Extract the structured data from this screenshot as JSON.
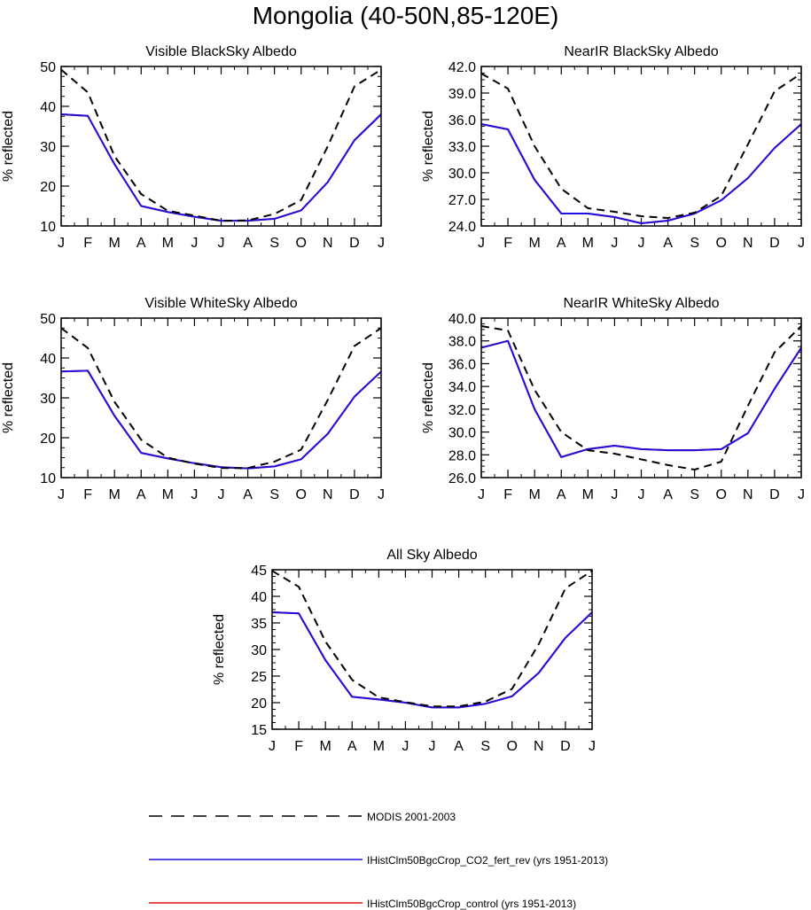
{
  "title": "Mongolia (40-50N,85-120E)",
  "colors": {
    "modis": "#000000",
    "co2_fert_rev": "#1e10e0",
    "control": "#e01010"
  },
  "legend": [
    {
      "label": "MODIS 2001-2003",
      "style": "dashed",
      "color": "#000000"
    },
    {
      "label": "IHistClm50BgcCrop_CO2_fert_rev (yrs 1951-2013)",
      "style": "solid",
      "color": "#1e10e0"
    },
    {
      "label": "IHistClm50BgcCrop_control (yrs 1951-2013)",
      "style": "solid",
      "color": "#e01010"
    }
  ],
  "chart_data": [
    {
      "type": "line",
      "title": "Visible BlackSky Albedo",
      "ylabel": "% reflected",
      "x": [
        "J",
        "F",
        "M",
        "A",
        "M",
        "J",
        "J",
        "A",
        "S",
        "O",
        "N",
        "D",
        "J"
      ],
      "ylim": [
        10,
        50
      ],
      "yticks": [
        "10",
        "20",
        "30",
        "40",
        "50"
      ],
      "series": [
        {
          "name": "MODIS 2001-2003",
          "style": "dashed",
          "color": "#000000",
          "values": [
            49.2,
            43.5,
            27.5,
            18.0,
            13.8,
            12.6,
            11.3,
            11.4,
            13.0,
            16.5,
            30.0,
            45.0,
            49.2
          ]
        },
        {
          "name": "IHistClm50BgcCrop_CO2_fert_rev (yrs 1951-2013)",
          "style": "solid",
          "color": "#1e10e0",
          "values": [
            38.0,
            37.6,
            25.5,
            15.0,
            13.5,
            12.3,
            11.3,
            11.3,
            11.8,
            13.9,
            21.0,
            31.5,
            38.0
          ]
        },
        {
          "name": "IHistClm50BgcCrop_control (yrs 1951-2013)",
          "style": "solid",
          "color": "#e01010",
          "values": [
            38.0,
            37.6,
            25.5,
            15.0,
            13.5,
            12.3,
            11.3,
            11.3,
            11.8,
            13.9,
            21.0,
            31.5,
            38.0
          ]
        }
      ]
    },
    {
      "type": "line",
      "title": "NearIR BlackSky Albedo",
      "ylabel": "% reflected",
      "x": [
        "J",
        "F",
        "M",
        "A",
        "M",
        "J",
        "J",
        "A",
        "S",
        "O",
        "N",
        "D",
        "J"
      ],
      "ylim": [
        24,
        42
      ],
      "yticks": [
        "24.0",
        "27.0",
        "30.0",
        "33.0",
        "36.0",
        "39.0",
        "42.0"
      ],
      "series": [
        {
          "name": "MODIS 2001-2003",
          "style": "dashed",
          "color": "#000000",
          "values": [
            41.2,
            39.5,
            33.0,
            28.2,
            26.0,
            25.6,
            25.1,
            24.9,
            25.5,
            27.4,
            33.2,
            39.2,
            41.2
          ]
        },
        {
          "name": "IHistClm50BgcCrop_CO2_fert_rev (yrs 1951-2013)",
          "style": "solid",
          "color": "#1e10e0",
          "values": [
            35.5,
            34.9,
            29.2,
            25.4,
            25.4,
            25.0,
            24.3,
            24.6,
            25.4,
            26.9,
            29.4,
            32.8,
            35.5
          ]
        },
        {
          "name": "IHistClm50BgcCrop_control (yrs 1951-2013)",
          "style": "solid",
          "color": "#e01010",
          "values": [
            35.5,
            34.9,
            29.2,
            25.4,
            25.4,
            25.0,
            24.3,
            24.6,
            25.4,
            26.9,
            29.4,
            32.8,
            35.5
          ]
        }
      ]
    },
    {
      "type": "line",
      "title": "Visible WhiteSky Albedo",
      "ylabel": "% reflected",
      "x": [
        "J",
        "F",
        "M",
        "A",
        "M",
        "J",
        "J",
        "A",
        "S",
        "O",
        "N",
        "D",
        "J"
      ],
      "ylim": [
        10,
        50
      ],
      "yticks": [
        "10",
        "20",
        "30",
        "40",
        "50"
      ],
      "series": [
        {
          "name": "MODIS 2001-2003",
          "style": "dashed",
          "color": "#000000",
          "values": [
            47.5,
            42.5,
            29.0,
            19.5,
            15.0,
            13.5,
            12.4,
            12.4,
            14.0,
            17.0,
            29.5,
            43.0,
            47.5
          ]
        },
        {
          "name": "IHistClm50BgcCrop_CO2_fert_rev (yrs 1951-2013)",
          "style": "solid",
          "color": "#1e10e0",
          "values": [
            36.6,
            36.8,
            25.5,
            16.2,
            14.8,
            13.6,
            12.6,
            12.3,
            12.8,
            14.6,
            21.0,
            30.3,
            36.6
          ]
        },
        {
          "name": "IHistClm50BgcCrop_control (yrs 1951-2013)",
          "style": "solid",
          "color": "#e01010",
          "values": [
            36.6,
            36.8,
            25.5,
            16.2,
            14.8,
            13.6,
            12.6,
            12.3,
            12.8,
            14.6,
            21.0,
            30.3,
            36.6
          ]
        }
      ]
    },
    {
      "type": "line",
      "title": "NearIR WhiteSky Albedo",
      "ylabel": "% reflected",
      "x": [
        "J",
        "F",
        "M",
        "A",
        "M",
        "J",
        "J",
        "A",
        "S",
        "O",
        "N",
        "D",
        "J"
      ],
      "ylim": [
        26,
        40
      ],
      "yticks": [
        "26.0",
        "28.0",
        "30.0",
        "32.0",
        "34.0",
        "36.0",
        "38.0",
        "40.0"
      ],
      "series": [
        {
          "name": "MODIS 2001-2003",
          "style": "dashed",
          "color": "#000000",
          "values": [
            39.3,
            38.9,
            33.7,
            30.0,
            28.4,
            28.1,
            27.6,
            27.1,
            26.7,
            27.4,
            32.3,
            37.0,
            39.3
          ]
        },
        {
          "name": "IHistClm50BgcCrop_CO2_fert_rev (yrs 1951-2013)",
          "style": "solid",
          "color": "#1e10e0",
          "values": [
            37.4,
            38.0,
            32.0,
            27.8,
            28.5,
            28.8,
            28.5,
            28.4,
            28.4,
            28.5,
            29.9,
            33.8,
            37.4
          ]
        },
        {
          "name": "IHistClm50BgcCrop_control (yrs 1951-2013)",
          "style": "solid",
          "color": "#e01010",
          "values": [
            37.4,
            38.0,
            32.0,
            27.8,
            28.5,
            28.8,
            28.5,
            28.4,
            28.4,
            28.5,
            29.9,
            33.8,
            37.4
          ]
        }
      ]
    },
    {
      "type": "line",
      "title": "All Sky Albedo",
      "ylabel": "% reflected",
      "x": [
        "J",
        "F",
        "M",
        "A",
        "M",
        "J",
        "J",
        "A",
        "S",
        "O",
        "N",
        "D",
        "J"
      ],
      "ylim": [
        15,
        45
      ],
      "yticks": [
        "15",
        "20",
        "25",
        "30",
        "35",
        "40",
        "45"
      ],
      "series": [
        {
          "name": "MODIS 2001-2003",
          "style": "dashed",
          "color": "#000000",
          "values": [
            44.8,
            41.8,
            31.5,
            24.3,
            21.0,
            20.1,
            19.3,
            19.3,
            20.2,
            22.6,
            31.0,
            41.5,
            44.8
          ]
        },
        {
          "name": "IHistClm50BgcCrop_CO2_fert_rev (yrs 1951-2013)",
          "style": "solid",
          "color": "#1e10e0",
          "values": [
            37.0,
            36.8,
            28.0,
            21.1,
            20.6,
            20.0,
            19.1,
            19.1,
            19.8,
            21.2,
            25.6,
            32.2,
            37.0
          ]
        },
        {
          "name": "IHistClm50BgcCrop_control (yrs 1951-2013)",
          "style": "solid",
          "color": "#e01010",
          "values": [
            37.0,
            36.8,
            28.0,
            21.1,
            20.6,
            20.0,
            19.1,
            19.1,
            19.8,
            21.2,
            25.6,
            32.2,
            37.0
          ]
        }
      ]
    }
  ]
}
